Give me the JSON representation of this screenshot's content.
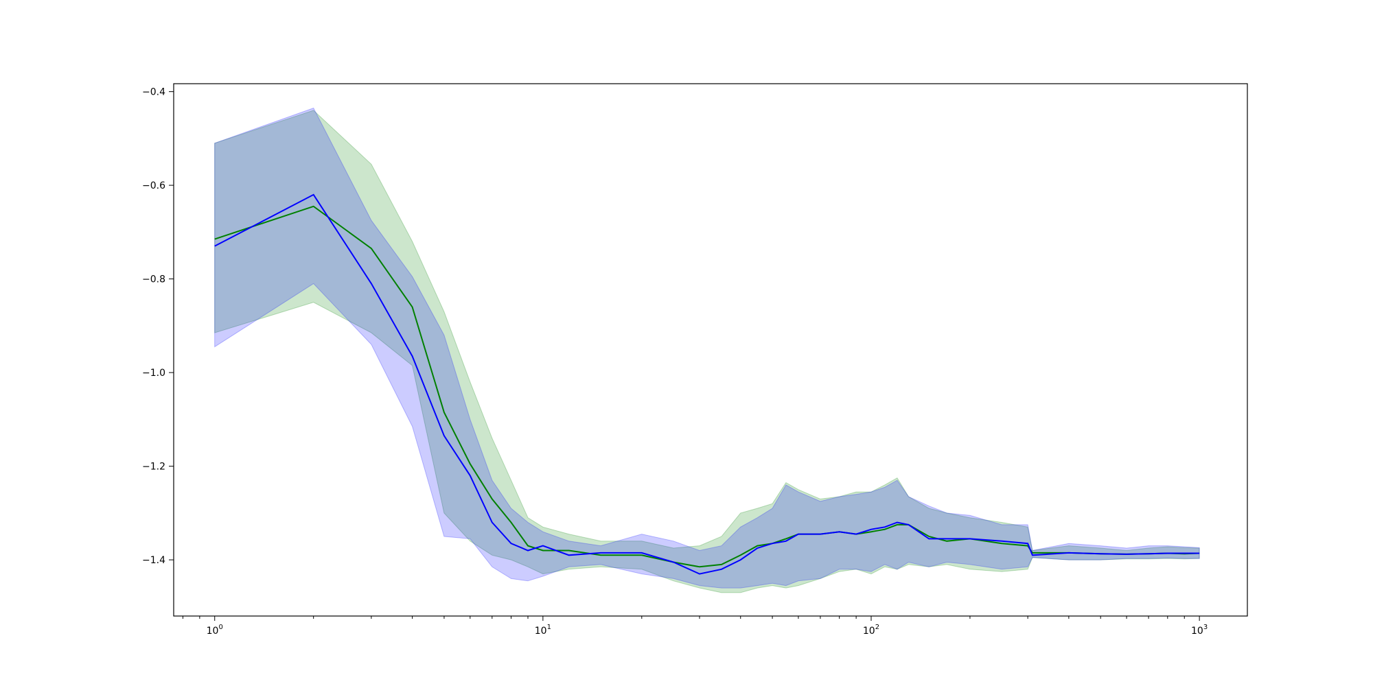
{
  "chart_data": {
    "type": "line",
    "title": "",
    "xlabel": "",
    "ylabel": "",
    "xscale": "log",
    "xlim": [
      0.75,
      1400
    ],
    "ylim": [
      -1.52,
      -0.383
    ],
    "x_ticks": [
      {
        "value": 1,
        "base": "10",
        "exp": "0"
      },
      {
        "value": 10,
        "base": "10",
        "exp": "1"
      },
      {
        "value": 100,
        "base": "10",
        "exp": "2"
      },
      {
        "value": 1000,
        "base": "10",
        "exp": "3"
      }
    ],
    "y_ticks": [
      {
        "value": -0.4,
        "label": "−0.4"
      },
      {
        "value": -0.6,
        "label": "−0.6"
      },
      {
        "value": -0.8,
        "label": "−0.8"
      },
      {
        "value": -1.0,
        "label": "−1.0"
      },
      {
        "value": -1.2,
        "label": "−1.2"
      },
      {
        "value": -1.4,
        "label": "−1.4"
      }
    ],
    "grid": false,
    "legend": "none",
    "series": [
      {
        "color": "#008000",
        "band_color": "#008000",
        "x": [
          1,
          2,
          3,
          4,
          5,
          6,
          7,
          8,
          9,
          10,
          12,
          15,
          20,
          25,
          30,
          35,
          40,
          45,
          50,
          55,
          60,
          70,
          80,
          90,
          100,
          110,
          120,
          130,
          150,
          170,
          200,
          250,
          300,
          310,
          400,
          500,
          600,
          700,
          800,
          900,
          1000
        ],
        "mean": [
          -0.715,
          -0.645,
          -0.735,
          -0.86,
          -1.085,
          -1.195,
          -1.27,
          -1.32,
          -1.37,
          -1.38,
          -1.38,
          -1.39,
          -1.39,
          -1.405,
          -1.415,
          -1.41,
          -1.39,
          -1.37,
          -1.365,
          -1.355,
          -1.345,
          -1.345,
          -1.34,
          -1.345,
          -1.34,
          -1.335,
          -1.325,
          -1.325,
          -1.35,
          -1.36,
          -1.355,
          -1.365,
          -1.37,
          -1.385,
          -1.385,
          -1.387,
          -1.388,
          -1.387,
          -1.386,
          -1.387,
          -1.386
        ],
        "upper": [
          -0.51,
          -0.44,
          -0.555,
          -0.72,
          -0.87,
          -1.02,
          -1.14,
          -1.23,
          -1.31,
          -1.33,
          -1.345,
          -1.36,
          -1.36,
          -1.375,
          -1.37,
          -1.35,
          -1.3,
          -1.29,
          -1.28,
          -1.235,
          -1.25,
          -1.27,
          -1.265,
          -1.255,
          -1.255,
          -1.24,
          -1.225,
          -1.265,
          -1.29,
          -1.3,
          -1.31,
          -1.32,
          -1.33,
          -1.38,
          -1.37,
          -1.375,
          -1.38,
          -1.375,
          -1.372,
          -1.374,
          -1.375
        ],
        "lower": [
          -0.915,
          -0.85,
          -0.915,
          -0.985,
          -1.3,
          -1.36,
          -1.39,
          -1.4,
          -1.415,
          -1.43,
          -1.42,
          -1.415,
          -1.42,
          -1.445,
          -1.46,
          -1.47,
          -1.47,
          -1.46,
          -1.455,
          -1.46,
          -1.455,
          -1.44,
          -1.425,
          -1.42,
          -1.43,
          -1.415,
          -1.42,
          -1.41,
          -1.415,
          -1.41,
          -1.42,
          -1.425,
          -1.42,
          -1.395,
          -1.4,
          -1.4,
          -1.398,
          -1.398,
          -1.397,
          -1.398,
          -1.397
        ]
      },
      {
        "color": "#0000ff",
        "band_color": "#0000ff",
        "x": [
          1,
          2,
          3,
          4,
          5,
          6,
          7,
          8,
          9,
          10,
          12,
          15,
          20,
          25,
          30,
          35,
          40,
          45,
          50,
          55,
          60,
          70,
          80,
          90,
          100,
          110,
          120,
          130,
          150,
          170,
          200,
          250,
          300,
          310,
          400,
          500,
          600,
          700,
          800,
          900,
          1000
        ],
        "mean": [
          -0.73,
          -0.62,
          -0.81,
          -0.965,
          -1.135,
          -1.22,
          -1.32,
          -1.365,
          -1.38,
          -1.37,
          -1.39,
          -1.385,
          -1.385,
          -1.405,
          -1.43,
          -1.42,
          -1.4,
          -1.375,
          -1.365,
          -1.36,
          -1.345,
          -1.345,
          -1.34,
          -1.345,
          -1.335,
          -1.33,
          -1.32,
          -1.325,
          -1.355,
          -1.355,
          -1.355,
          -1.36,
          -1.365,
          -1.39,
          -1.385,
          -1.387,
          -1.388,
          -1.387,
          -1.386,
          -1.386,
          -1.386
        ],
        "upper": [
          -0.51,
          -0.435,
          -0.675,
          -0.795,
          -0.92,
          -1.1,
          -1.23,
          -1.29,
          -1.32,
          -1.34,
          -1.36,
          -1.37,
          -1.345,
          -1.36,
          -1.38,
          -1.37,
          -1.33,
          -1.31,
          -1.29,
          -1.24,
          -1.255,
          -1.275,
          -1.265,
          -1.26,
          -1.255,
          -1.245,
          -1.23,
          -1.265,
          -1.285,
          -1.3,
          -1.305,
          -1.325,
          -1.325,
          -1.38,
          -1.365,
          -1.37,
          -1.375,
          -1.37,
          -1.37,
          -1.372,
          -1.374
        ],
        "lower": [
          -0.945,
          -0.81,
          -0.94,
          -1.115,
          -1.35,
          -1.355,
          -1.415,
          -1.44,
          -1.445,
          -1.435,
          -1.415,
          -1.41,
          -1.43,
          -1.44,
          -1.455,
          -1.46,
          -1.46,
          -1.455,
          -1.45,
          -1.455,
          -1.445,
          -1.44,
          -1.42,
          -1.42,
          -1.425,
          -1.41,
          -1.42,
          -1.405,
          -1.415,
          -1.405,
          -1.41,
          -1.42,
          -1.415,
          -1.395,
          -1.4,
          -1.4,
          -1.397,
          -1.397,
          -1.396,
          -1.397,
          -1.397
        ]
      }
    ]
  }
}
